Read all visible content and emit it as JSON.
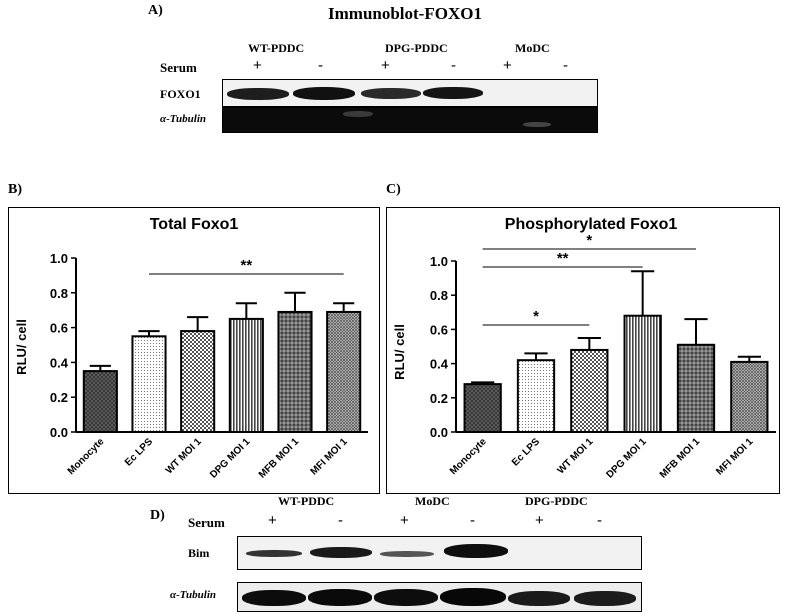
{
  "panel_a": {
    "letter": "A)",
    "title": "Immunoblot-FOXO1",
    "groups": [
      "WT-PDDC",
      "DPG-PDDC",
      "MoDC"
    ],
    "row_label_serum": "Serum",
    "signs": [
      "+",
      "-",
      "+",
      "-",
      "+",
      "-"
    ],
    "row_label_1": "FOXO1",
    "row_label_2": "α-Tubulin"
  },
  "panel_d": {
    "letter": "D)",
    "groups": [
      "WT-PDDC",
      "MoDC",
      "DPG-PDDC"
    ],
    "row_label_serum": "Serum",
    "signs": [
      "+",
      "-",
      "+",
      "-",
      "+",
      "-"
    ],
    "row_label_1": "Bim",
    "row_label_2": "α-Tubulin"
  },
  "panel_b_letter": "B)",
  "panel_c_letter": "C)",
  "chart_data": [
    {
      "type": "bar",
      "title": "Total Foxo1",
      "ylabel": "RLU/ cell",
      "xlabel": "",
      "ylim": [
        0,
        1.0
      ],
      "yticks": [
        "0.0",
        "0.2",
        "0.4",
        "0.6",
        "0.8",
        "1.0"
      ],
      "categories": [
        "Monocyte",
        "Ec LPS",
        "WT MOI 1",
        "DPG MOI 1",
        "MFB MOI 1",
        "MFI MOI 1"
      ],
      "values": [
        0.35,
        0.55,
        0.58,
        0.65,
        0.69,
        0.69
      ],
      "errors": [
        0.03,
        0.03,
        0.08,
        0.09,
        0.11,
        0.05
      ],
      "significance": [
        {
          "from": 1,
          "to": 5,
          "label": "**"
        }
      ]
    },
    {
      "type": "bar",
      "title": "Phosphorylated Foxo1",
      "ylabel": "RLU/ cell",
      "xlabel": "",
      "ylim": [
        0,
        1.0
      ],
      "yticks": [
        "0.0",
        "0.2",
        "0.4",
        "0.6",
        "0.8",
        "1.0"
      ],
      "categories": [
        "Monocyte",
        "Ec LPS",
        "WT MOI 1",
        "DPG MOI 1",
        "MFB MOI 1",
        "MFI MOI 1"
      ],
      "values": [
        0.28,
        0.42,
        0.48,
        0.68,
        0.51,
        0.41
      ],
      "errors": [
        0.01,
        0.04,
        0.07,
        0.26,
        0.15,
        0.03
      ],
      "significance": [
        {
          "from": 0,
          "to": 4,
          "label": "*"
        },
        {
          "from": 0,
          "to": 3,
          "label": "**"
        },
        {
          "from": 0,
          "to": 2,
          "label": "*"
        }
      ]
    }
  ]
}
